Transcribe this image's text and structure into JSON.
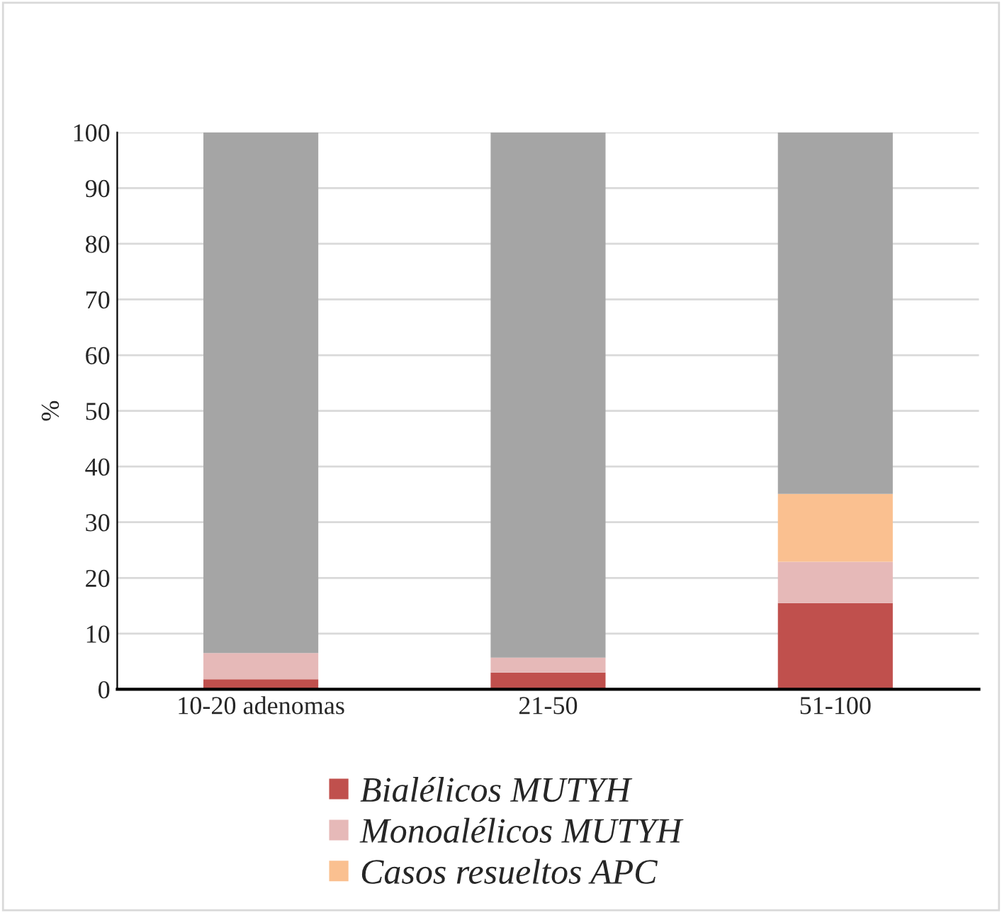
{
  "chart_data": {
    "type": "bar",
    "stacked": true,
    "ylabel": "%",
    "categories": [
      "10-20 adenomas",
      "21-50",
      "51-100"
    ],
    "series": [
      {
        "name": "Bialélicos MUTYH",
        "color": "#c0504d",
        "values": [
          1.8,
          3.0,
          15.5
        ]
      },
      {
        "name": "Monoalélicos MUTYH",
        "color": "#e6b9b8",
        "values": [
          4.7,
          2.7,
          7.4
        ]
      },
      {
        "name": "Casos resueltos APC",
        "color": "#fac090",
        "values": [
          0,
          0,
          12.2
        ]
      },
      {
        "color": "#a5a5a5",
        "values": [
          93.5,
          94.3,
          64.9
        ]
      }
    ],
    "ylim": [
      0,
      100
    ],
    "yticks": [
      0,
      10,
      20,
      30,
      40,
      50,
      60,
      70,
      80,
      90,
      100
    ],
    "grid": "y",
    "legend": "bottom"
  }
}
